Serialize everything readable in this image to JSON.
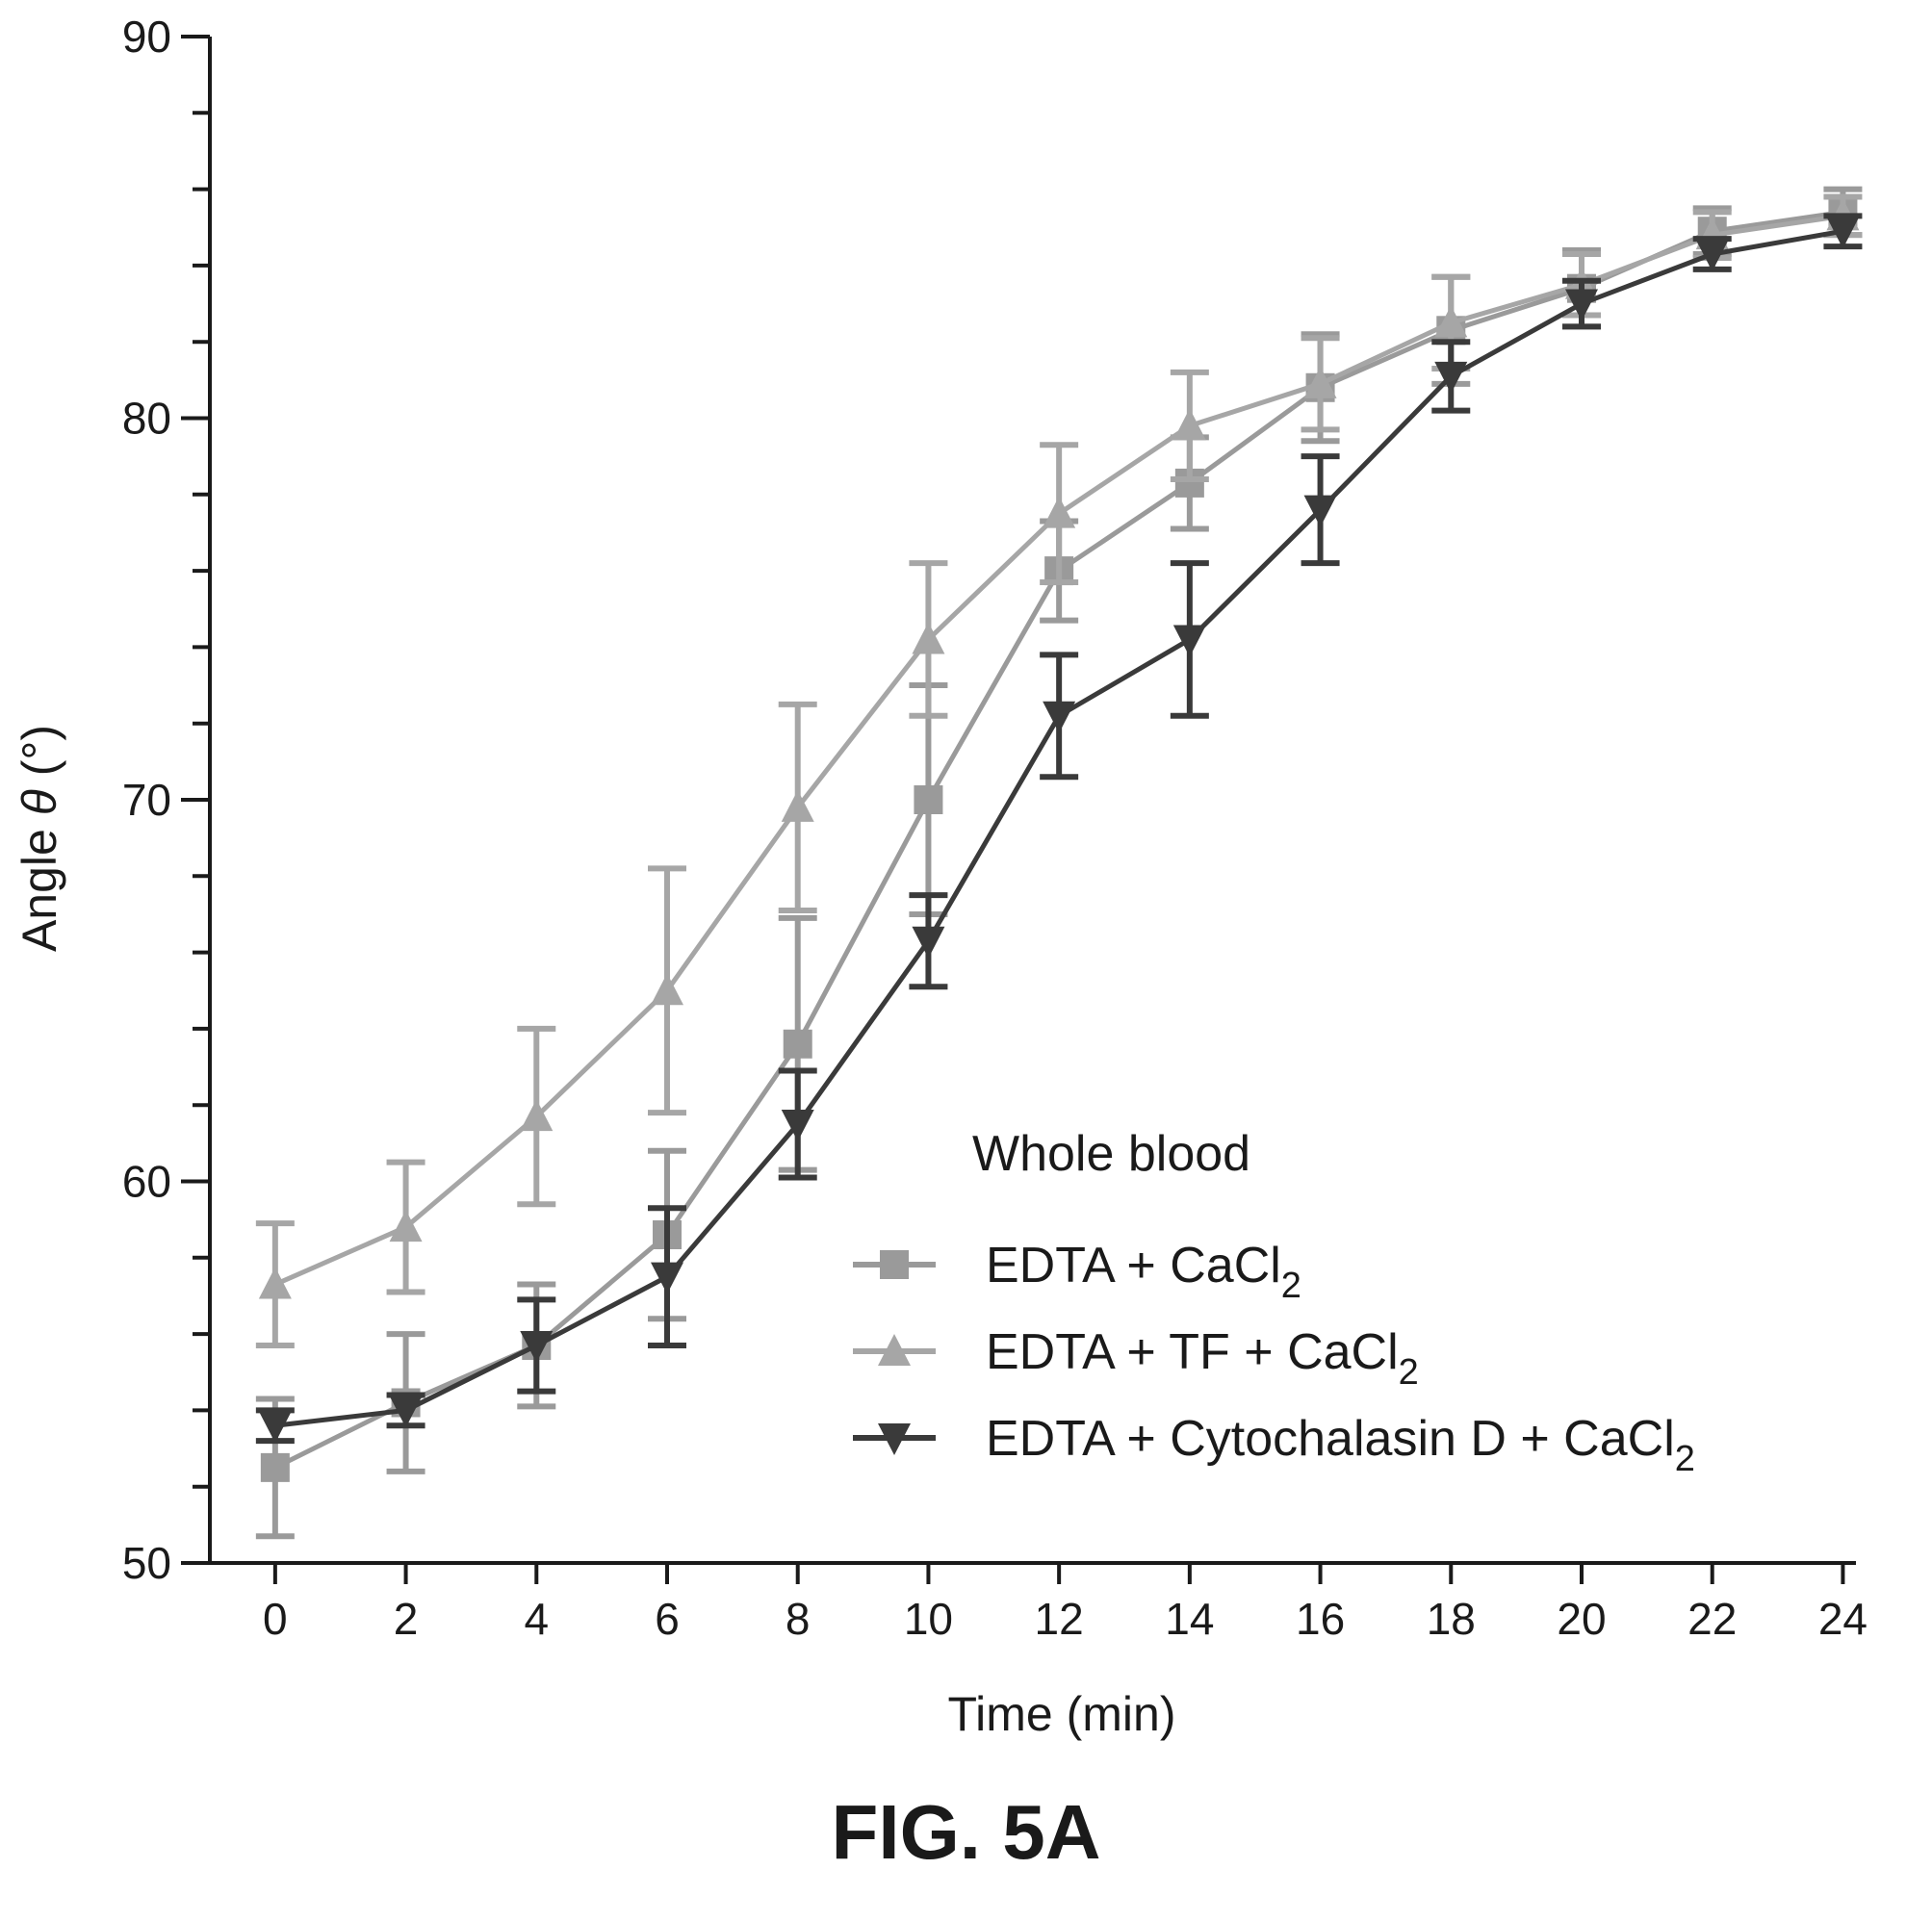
{
  "figure_label": "FIG. 5A",
  "chart_data": {
    "type": "line",
    "xlabel": "Time (min)",
    "ylabel_prefix": "Angle ",
    "ylabel_symbol": "θ",
    "ylabel_suffix": " (°)",
    "xlim": [
      -1,
      24.2
    ],
    "ylim": [
      50,
      90
    ],
    "x_ticks": [
      0,
      2,
      4,
      6,
      8,
      10,
      12,
      14,
      16,
      18,
      20,
      22,
      24
    ],
    "y_ticks": [
      50,
      60,
      70,
      80,
      90
    ],
    "y_minor_step": 2,
    "grid": false,
    "legend": {
      "title": "Whole blood",
      "placement": "center-right",
      "entries": [
        {
          "base": "EDTA + CaCl",
          "sub": "2"
        },
        {
          "base": "EDTA + TF + CaCl",
          "sub": "2"
        },
        {
          "base": "EDTA + Cytochalasin D + CaCl",
          "sub": "2"
        }
      ]
    },
    "x": [
      0,
      2,
      4,
      6,
      8,
      10,
      12,
      14,
      16,
      18,
      20,
      22,
      24
    ],
    "series": [
      {
        "marker": "square",
        "color": "#9a9a9a",
        "values": [
          52.5,
          54.2,
          55.7,
          58.6,
          63.6,
          70.0,
          76.0,
          78.3,
          80.8,
          82.3,
          83.4,
          84.9,
          85.4
        ],
        "errors": [
          1.8,
          1.8,
          1.6,
          2.2,
          3.3,
          3.0,
          1.3,
          1.2,
          1.4,
          1.4,
          1.0,
          0.6,
          0.6
        ]
      },
      {
        "marker": "triangle-up",
        "color": "#a6a6a6",
        "values": [
          57.3,
          58.8,
          61.7,
          65.0,
          69.8,
          74.2,
          77.5,
          79.8,
          80.9,
          82.5,
          83.5,
          84.8,
          85.3
        ],
        "errors": [
          1.6,
          1.7,
          2.3,
          3.2,
          2.7,
          2.0,
          1.8,
          1.4,
          1.2,
          1.2,
          0.8,
          0.6,
          0.5
        ]
      },
      {
        "marker": "triangle-down",
        "color": "#3a3a3a",
        "values": [
          53.6,
          54.0,
          55.7,
          57.5,
          61.5,
          66.3,
          72.2,
          74.2,
          77.6,
          81.1,
          83.0,
          84.3,
          84.9
        ],
        "errors": [
          0.4,
          0.4,
          1.2,
          1.8,
          1.4,
          1.2,
          1.6,
          2.0,
          1.4,
          0.9,
          0.6,
          0.4,
          0.4
        ]
      }
    ]
  }
}
